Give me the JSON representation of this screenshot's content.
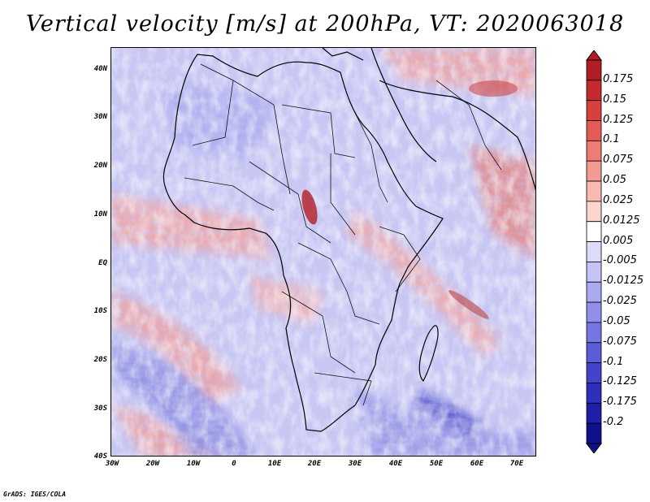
{
  "title": "Vertical velocity [m/s] at 200hPa, VT: 2020063018",
  "footer": "GrADS: IGES/COLA",
  "map": {
    "lat_labels": [
      "40N",
      "30N",
      "20N",
      "10N",
      "EQ",
      "10S",
      "20S",
      "30S",
      "40S"
    ],
    "lon_labels": [
      "30W",
      "20W",
      "10W",
      "0",
      "10E",
      "20E",
      "30E",
      "40E",
      "50E",
      "60E",
      "70E"
    ],
    "lon_range": [
      -30,
      75
    ],
    "lat_range": [
      -40,
      44
    ]
  },
  "colorbar": {
    "labels": [
      "0.175",
      "0.15",
      "0.125",
      "0.1",
      "0.075",
      "0.05",
      "0.025",
      "0.0125",
      "0.005",
      "-0.005",
      "-0.0125",
      "-0.025",
      "-0.05",
      "-0.075",
      "-0.1",
      "-0.125",
      "-0.175",
      "-0.2"
    ],
    "colors": [
      "#b11d24",
      "#c52a2e",
      "#d8403e",
      "#e55a55",
      "#ee7c74",
      "#f39b92",
      "#f7b9b0",
      "#fbd6cf",
      "#ffffff",
      "#dcdcfa",
      "#c4c4f6",
      "#aaaaf1",
      "#9090ea",
      "#7676e2",
      "#5c5cd8",
      "#4343cc",
      "#2f2fbd",
      "#1e1ea8",
      "#10108c"
    ]
  }
}
